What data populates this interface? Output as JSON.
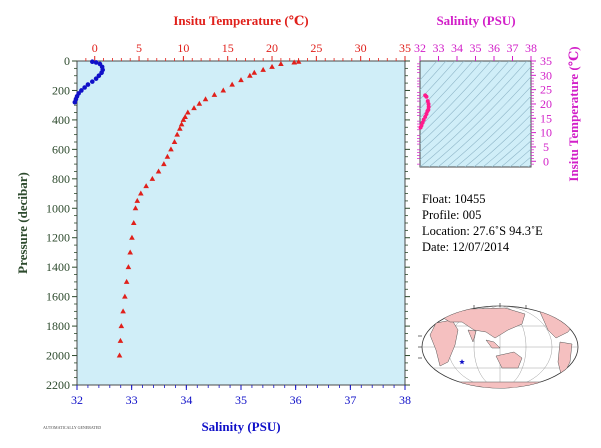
{
  "chart_data": [
    {
      "type": "scatter",
      "name": "main-profile",
      "x_top_label": "Insitu Temperature (℃)",
      "x_bottom_label": "Salinity (PSU)",
      "ylabel": "Pressure (decibar)",
      "temperature_range": [
        -2,
        35
      ],
      "temperature_ticks": [
        "0",
        "5",
        "10",
        "15",
        "20",
        "25",
        "30",
        "35"
      ],
      "salinity_range": [
        32,
        38
      ],
      "salinity_ticks": [
        "32",
        "33",
        "34",
        "35",
        "36",
        "37",
        "38"
      ],
      "pressure_range": [
        0,
        2200
      ],
      "pressure_ticks": [
        "0",
        "200",
        "400",
        "600",
        "800",
        "1000",
        "1200",
        "1400",
        "1600",
        "1800",
        "2000",
        "2200"
      ],
      "grid": false,
      "series": [
        {
          "variable": "temperature",
          "color": "#e0201b",
          "marker": "triangle",
          "points": [
            [
              23.0,
              5
            ],
            [
              22.5,
              10
            ],
            [
              21.0,
              20
            ],
            [
              20.0,
              40
            ],
            [
              19.0,
              60
            ],
            [
              18.0,
              80
            ],
            [
              17.5,
              100
            ],
            [
              16.5,
              130
            ],
            [
              15.5,
              160
            ],
            [
              14.5,
              200
            ],
            [
              13.5,
              230
            ],
            [
              12.5,
              260
            ],
            [
              11.8,
              290
            ],
            [
              11.2,
              320
            ],
            [
              10.5,
              350
            ],
            [
              10.2,
              380
            ],
            [
              10.0,
              400
            ],
            [
              9.8,
              430
            ],
            [
              9.6,
              460
            ],
            [
              9.3,
              500
            ],
            [
              9.0,
              550
            ],
            [
              8.6,
              600
            ],
            [
              8.2,
              650
            ],
            [
              7.8,
              700
            ],
            [
              7.2,
              750
            ],
            [
              6.5,
              800
            ],
            [
              5.8,
              850
            ],
            [
              5.2,
              900
            ],
            [
              4.8,
              950
            ],
            [
              4.6,
              1000
            ],
            [
              4.4,
              1100
            ],
            [
              4.2,
              1200
            ],
            [
              4.0,
              1300
            ],
            [
              3.8,
              1400
            ],
            [
              3.6,
              1500
            ],
            [
              3.4,
              1600
            ],
            [
              3.2,
              1700
            ],
            [
              3.0,
              1800
            ],
            [
              2.9,
              1900
            ],
            [
              2.8,
              2000
            ]
          ]
        },
        {
          "variable": "salinity",
          "color": "#1010c8",
          "marker": "circle",
          "points": [
            [
              32.28,
              5
            ],
            [
              32.35,
              10
            ],
            [
              32.42,
              20
            ],
            [
              32.46,
              40
            ],
            [
              32.47,
              60
            ],
            [
              32.45,
              80
            ],
            [
              32.4,
              100
            ],
            [
              32.35,
              120
            ],
            [
              32.28,
              140
            ],
            [
              32.2,
              160
            ],
            [
              32.14,
              180
            ],
            [
              32.08,
              200
            ],
            [
              32.03,
              220
            ],
            [
              32.0,
              240
            ],
            [
              31.98,
              260
            ],
            [
              31.96,
              280
            ]
          ]
        }
      ]
    },
    {
      "type": "scatter",
      "name": "ts-diagram",
      "xlabel": "Salinity (PSU)",
      "ylabel": "Insitu Temperature (℃)",
      "salinity_range": [
        32,
        38
      ],
      "salinity_ticks": [
        "32",
        "33",
        "34",
        "35",
        "36",
        "37",
        "38"
      ],
      "temperature_range": [
        -2,
        35
      ],
      "temperature_ticks": [
        "0",
        "5",
        "10",
        "15",
        "20",
        "25",
        "30",
        "35"
      ],
      "density_isolines": true,
      "points_color": "#ff1a8c",
      "points": [
        [
          32.28,
          23.0
        ],
        [
          32.35,
          22.5
        ],
        [
          32.42,
          21.0
        ],
        [
          32.46,
          20.0
        ],
        [
          32.47,
          19.0
        ],
        [
          32.45,
          18.0
        ],
        [
          32.4,
          17.5
        ],
        [
          32.35,
          16.5
        ],
        [
          32.28,
          15.5
        ],
        [
          32.2,
          14.5
        ],
        [
          32.14,
          13.5
        ],
        [
          32.08,
          12.5
        ],
        [
          32.03,
          11.8
        ]
      ]
    }
  ],
  "float_info": {
    "float": "Float:  10455",
    "profile": "Profile:  005",
    "location": "Location:  27.6˚S  94.3˚E",
    "date": "Date:  12/07/2014"
  },
  "footer_text": "AUTOMATICALLY GENERATED",
  "colors": {
    "plot_bg": "#d0eef8",
    "temperature": "#e0201b",
    "salinity": "#1010c8",
    "ts_axis": "#d21fc8",
    "pressure_axis": "#2d4a2d",
    "land": "#f5c0c0",
    "ocean": "#ffffff"
  },
  "map": {
    "marker": "star",
    "marker_color": "#1010c8"
  }
}
